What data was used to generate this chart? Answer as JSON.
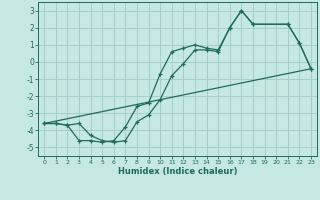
{
  "xlabel": "Humidex (Indice chaleur)",
  "xlim": [
    -0.5,
    23.5
  ],
  "ylim": [
    -5.5,
    3.5
  ],
  "xticks": [
    0,
    1,
    2,
    3,
    4,
    5,
    6,
    7,
    8,
    9,
    10,
    11,
    12,
    13,
    14,
    15,
    16,
    17,
    18,
    19,
    20,
    21,
    22,
    23
  ],
  "yticks": [
    -5,
    -4,
    -3,
    -2,
    -1,
    0,
    1,
    2,
    3
  ],
  "bg_color": "#c6e8e2",
  "grid_color": "#a4cfc8",
  "line_color": "#1e6b5a",
  "line1_x": [
    0,
    1,
    2,
    3,
    4,
    5,
    6,
    7,
    8,
    9,
    10,
    11,
    12,
    13,
    14,
    15,
    16,
    17,
    18,
    21,
    22,
    23
  ],
  "line1_y": [
    -3.6,
    -3.6,
    -3.7,
    -4.6,
    -4.6,
    -4.7,
    -4.6,
    -3.8,
    -2.6,
    -2.4,
    -0.7,
    0.6,
    0.8,
    1.0,
    0.8,
    0.7,
    2.0,
    3.0,
    2.2,
    2.2,
    1.1,
    -0.4
  ],
  "line2_x": [
    0,
    23
  ],
  "line2_y": [
    -3.6,
    -0.4
  ],
  "line3_x": [
    0,
    1,
    2,
    3,
    4,
    5,
    6,
    7,
    8,
    9,
    10,
    11,
    12,
    13,
    14,
    15,
    16,
    17,
    18,
    21,
    22,
    23
  ],
  "line3_y": [
    -3.6,
    -3.6,
    -3.7,
    -3.6,
    -4.3,
    -4.6,
    -4.7,
    -4.6,
    -3.5,
    -3.1,
    -2.2,
    -0.8,
    -0.1,
    0.7,
    0.7,
    0.6,
    2.0,
    3.0,
    2.2,
    2.2,
    1.1,
    -0.4
  ]
}
